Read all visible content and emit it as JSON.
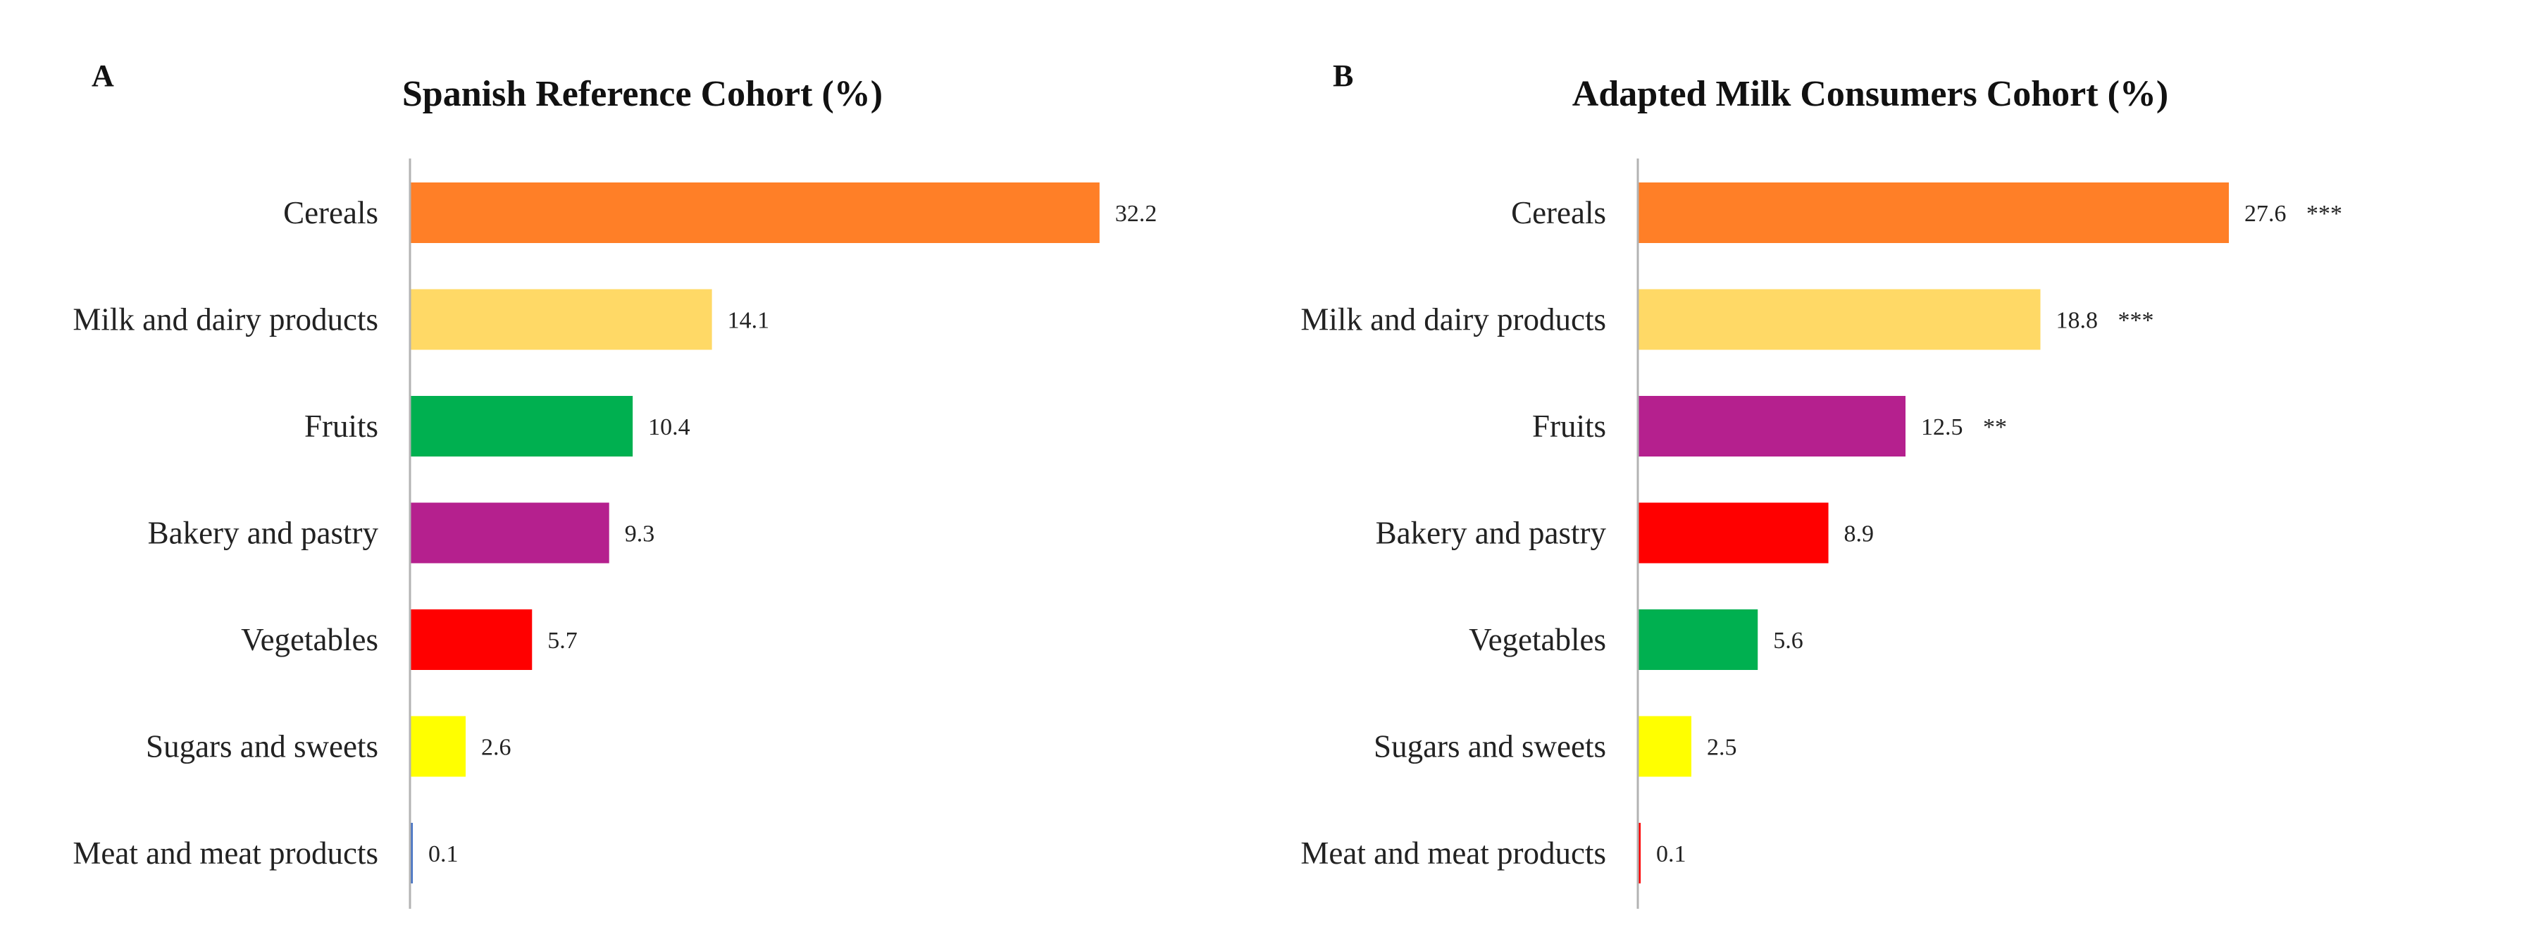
{
  "chart_data": [
    {
      "type": "bar",
      "orientation": "horizontal",
      "panel": "A",
      "title": "Spanish Reference Cohort (%)",
      "xlabel": "",
      "ylabel": "",
      "xlim": [
        0,
        35
      ],
      "categories": [
        "Cereals",
        "Milk and dairy products",
        "Fruits",
        "Bakery and pastry",
        "Vegetables",
        "Sugars and sweets",
        "Meat and meat products"
      ],
      "values": [
        32.2,
        14.1,
        10.4,
        9.3,
        5.7,
        2.6,
        0.1
      ],
      "value_labels": [
        "32.2",
        "14.1",
        "10.4",
        "9.3",
        "5.7",
        "2.6",
        "0.1"
      ],
      "significance": [
        "",
        "",
        "",
        "",
        "",
        "",
        ""
      ],
      "colors": [
        "#FF7F27",
        "#FFD966",
        "#00B050",
        "#B5208E",
        "#FF0000",
        "#FFFF00",
        "#4472C4"
      ]
    },
    {
      "type": "bar",
      "orientation": "horizontal",
      "panel": "B",
      "title": "Adapted Milk Consumers Cohort (%)",
      "xlabel": "",
      "ylabel": "",
      "xlim": [
        0,
        35
      ],
      "categories": [
        "Cereals",
        "Milk and dairy products",
        "Fruits",
        "Bakery and pastry",
        "Vegetables",
        "Sugars and sweets",
        "Meat and meat products"
      ],
      "values": [
        27.6,
        18.8,
        12.5,
        8.9,
        5.6,
        2.5,
        0.1
      ],
      "value_labels": [
        "27.6",
        "18.8",
        "12.5",
        "8.9",
        "5.6",
        "2.5",
        "0.1"
      ],
      "significance": [
        "***",
        "***",
        "**",
        "",
        "",
        "",
        ""
      ],
      "colors": [
        "#FF7F27",
        "#FFD966",
        "#B5208E",
        "#FF0000",
        "#00B050",
        "#FFFF00",
        "#FF0000"
      ]
    }
  ]
}
